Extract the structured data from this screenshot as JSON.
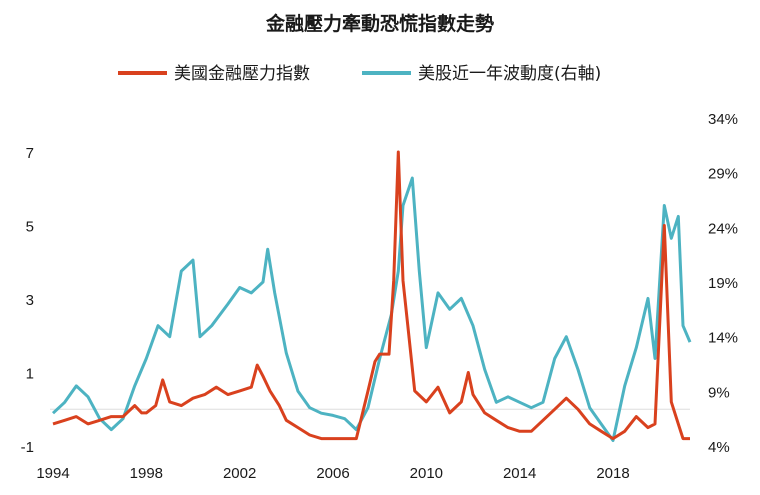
{
  "chart_data": {
    "type": "line",
    "title": "金融壓力牽動恐慌指數走勢",
    "legend_position": "top",
    "grid": false,
    "x_ticks": [
      "1994",
      "1998",
      "2002",
      "2006",
      "2010",
      "2014",
      "2018"
    ],
    "left_ticks": [
      "7",
      "5",
      "3",
      "1",
      "-1"
    ],
    "right_ticks": [
      "34%",
      "29%",
      "24%",
      "19%",
      "14%",
      "9%",
      "4%"
    ],
    "xlim": [
      1994,
      2021.3
    ],
    "ylim_left": [
      -1,
      7
    ],
    "ylim_right": [
      4,
      34
    ],
    "series": [
      {
        "name": "美國金融壓力指數",
        "color": "#d9411e",
        "axis": "left",
        "points": [
          [
            1994.0,
            -0.4
          ],
          [
            1994.5,
            -0.3
          ],
          [
            1995.0,
            -0.2
          ],
          [
            1995.5,
            -0.4
          ],
          [
            1996.0,
            -0.3
          ],
          [
            1996.5,
            -0.2
          ],
          [
            1997.0,
            -0.2
          ],
          [
            1997.5,
            0.1
          ],
          [
            1997.8,
            -0.1
          ],
          [
            1998.0,
            -0.1
          ],
          [
            1998.4,
            0.1
          ],
          [
            1998.7,
            0.8
          ],
          [
            1999.0,
            0.2
          ],
          [
            1999.5,
            0.1
          ],
          [
            2000.0,
            0.3
          ],
          [
            2000.5,
            0.4
          ],
          [
            2001.0,
            0.6
          ],
          [
            2001.5,
            0.4
          ],
          [
            2002.0,
            0.5
          ],
          [
            2002.5,
            0.6
          ],
          [
            2002.75,
            1.2
          ],
          [
            2003.0,
            0.9
          ],
          [
            2003.3,
            0.5
          ],
          [
            2003.7,
            0.1
          ],
          [
            2004.0,
            -0.3
          ],
          [
            2004.5,
            -0.5
          ],
          [
            2005.0,
            -0.7
          ],
          [
            2005.5,
            -0.8
          ],
          [
            2006.0,
            -0.8
          ],
          [
            2006.5,
            -0.8
          ],
          [
            2007.0,
            -0.8
          ],
          [
            2007.5,
            0.5
          ],
          [
            2007.8,
            1.3
          ],
          [
            2008.0,
            1.5
          ],
          [
            2008.4,
            1.5
          ],
          [
            2008.6,
            3.5
          ],
          [
            2008.8,
            7.0
          ],
          [
            2009.0,
            3.5
          ],
          [
            2009.2,
            2.3
          ],
          [
            2009.5,
            0.5
          ],
          [
            2010.0,
            0.2
          ],
          [
            2010.5,
            0.6
          ],
          [
            2011.0,
            -0.1
          ],
          [
            2011.5,
            0.2
          ],
          [
            2011.8,
            1.0
          ],
          [
            2012.0,
            0.4
          ],
          [
            2012.5,
            -0.1
          ],
          [
            2013.0,
            -0.3
          ],
          [
            2013.5,
            -0.5
          ],
          [
            2014.0,
            -0.6
          ],
          [
            2014.5,
            -0.6
          ],
          [
            2015.0,
            -0.3
          ],
          [
            2015.5,
            0.0
          ],
          [
            2016.0,
            0.3
          ],
          [
            2016.5,
            0.0
          ],
          [
            2017.0,
            -0.4
          ],
          [
            2017.5,
            -0.6
          ],
          [
            2018.0,
            -0.8
          ],
          [
            2018.5,
            -0.6
          ],
          [
            2019.0,
            -0.2
          ],
          [
            2019.5,
            -0.5
          ],
          [
            2019.8,
            -0.4
          ],
          [
            2020.2,
            5.0
          ],
          [
            2020.5,
            0.2
          ],
          [
            2020.8,
            -0.4
          ],
          [
            2021.0,
            -0.8
          ],
          [
            2021.3,
            -0.8
          ]
        ]
      },
      {
        "name": "美股近一年波動度(右軸)",
        "color": "#4db3c2",
        "axis": "right",
        "points": [
          [
            1994.0,
            7.0
          ],
          [
            1994.5,
            8.0
          ],
          [
            1995.0,
            9.5
          ],
          [
            1995.5,
            8.5
          ],
          [
            1996.0,
            6.5
          ],
          [
            1996.5,
            5.5
          ],
          [
            1997.0,
            6.5
          ],
          [
            1997.5,
            9.5
          ],
          [
            1998.0,
            12.0
          ],
          [
            1998.5,
            15.0
          ],
          [
            1999.0,
            14.0
          ],
          [
            1999.5,
            20.0
          ],
          [
            2000.0,
            21.0
          ],
          [
            2000.3,
            14.0
          ],
          [
            2000.8,
            15.0
          ],
          [
            2001.5,
            17.0
          ],
          [
            2002.0,
            18.5
          ],
          [
            2002.5,
            18.0
          ],
          [
            2003.0,
            19.0
          ],
          [
            2003.2,
            22.0
          ],
          [
            2003.5,
            18.0
          ],
          [
            2004.0,
            12.5
          ],
          [
            2004.5,
            9.0
          ],
          [
            2005.0,
            7.5
          ],
          [
            2005.5,
            7.0
          ],
          [
            2006.0,
            6.8
          ],
          [
            2006.5,
            6.5
          ],
          [
            2007.0,
            5.5
          ],
          [
            2007.5,
            7.5
          ],
          [
            2008.0,
            12.0
          ],
          [
            2008.5,
            16.0
          ],
          [
            2008.8,
            20.0
          ],
          [
            2009.0,
            26.0
          ],
          [
            2009.4,
            28.5
          ],
          [
            2009.7,
            20.0
          ],
          [
            2010.0,
            13.0
          ],
          [
            2010.5,
            18.0
          ],
          [
            2011.0,
            16.5
          ],
          [
            2011.5,
            17.5
          ],
          [
            2012.0,
            15.0
          ],
          [
            2012.5,
            11.0
          ],
          [
            2013.0,
            8.0
          ],
          [
            2013.5,
            8.5
          ],
          [
            2014.0,
            8.0
          ],
          [
            2014.5,
            7.5
          ],
          [
            2015.0,
            8.0
          ],
          [
            2015.5,
            12.0
          ],
          [
            2016.0,
            14.0
          ],
          [
            2016.5,
            11.0
          ],
          [
            2017.0,
            7.5
          ],
          [
            2017.5,
            6.0
          ],
          [
            2018.0,
            4.5
          ],
          [
            2018.5,
            9.5
          ],
          [
            2019.0,
            13.0
          ],
          [
            2019.5,
            17.5
          ],
          [
            2019.8,
            12.0
          ],
          [
            2020.2,
            26.0
          ],
          [
            2020.5,
            23.0
          ],
          [
            2020.8,
            25.0
          ],
          [
            2021.0,
            15.0
          ],
          [
            2021.3,
            13.5
          ]
        ]
      }
    ]
  }
}
